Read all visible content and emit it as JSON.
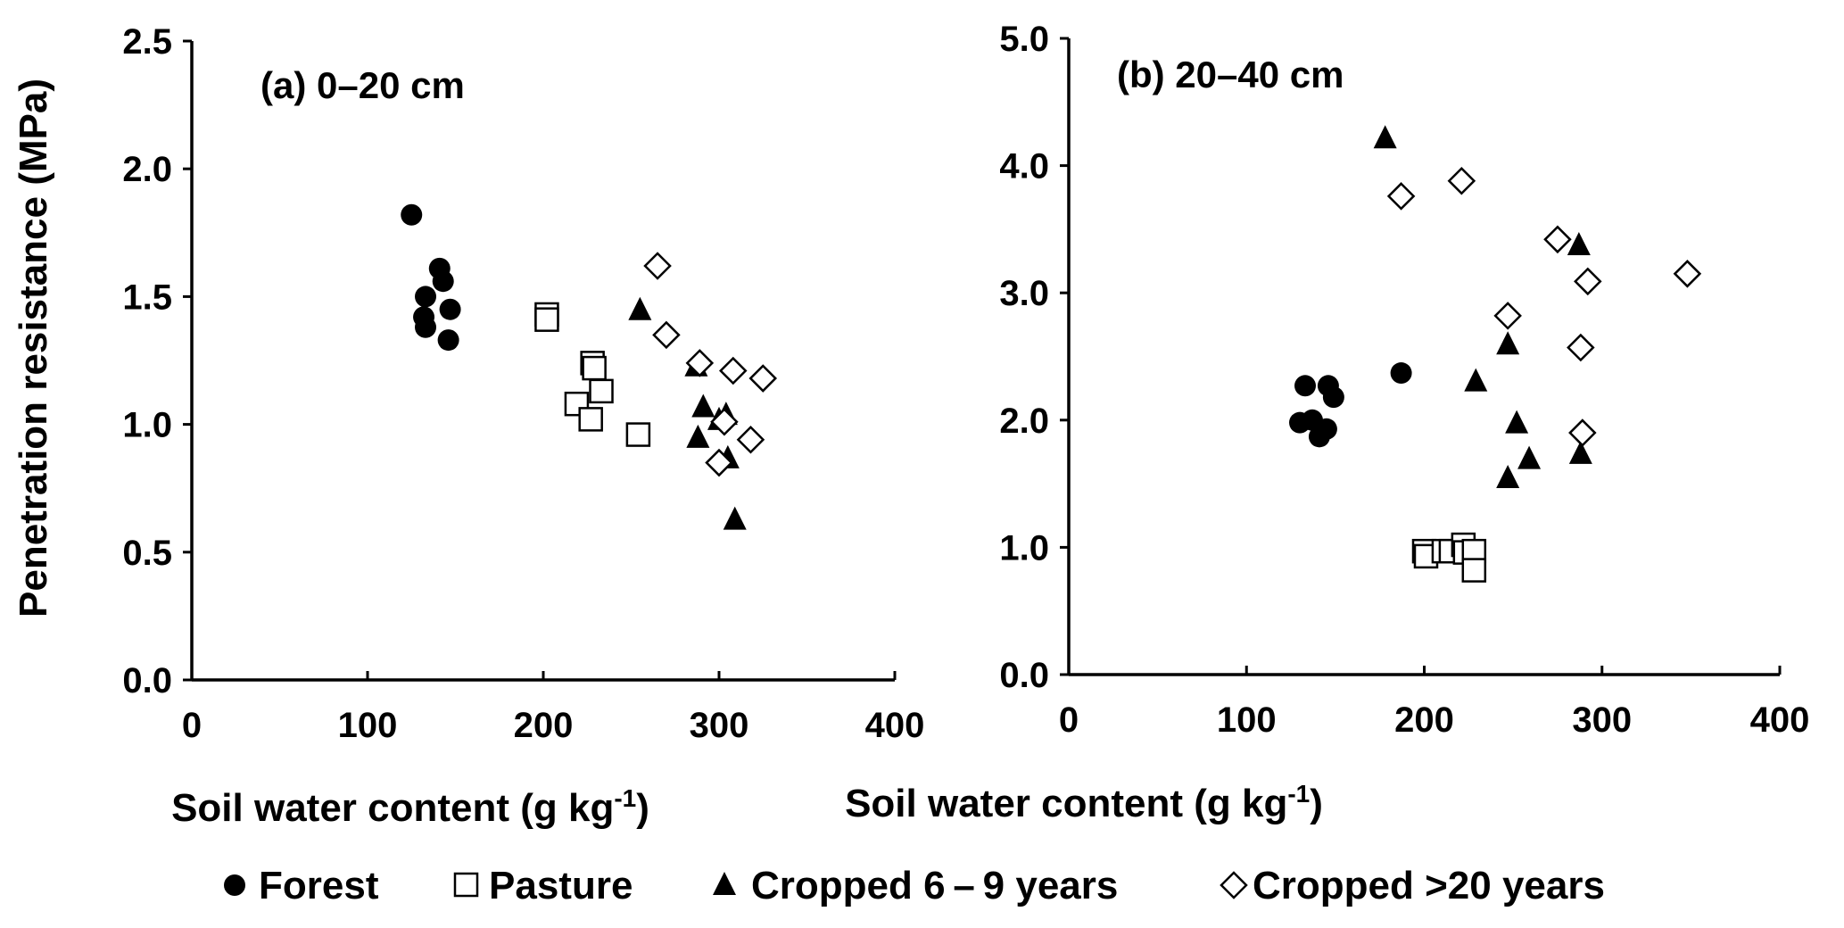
{
  "chart_data": [
    {
      "type": "scatter",
      "title": "(a)  0–20 cm",
      "xlabel": "Soil water content (g kg",
      "xlabel_sup": "-1",
      "xlabel_close": ")",
      "ylabel": "Penetration resistance (MPa)",
      "xlim": [
        0,
        400
      ],
      "ylim": [
        0,
        2.5
      ],
      "xticks": [
        "0",
        "100",
        "200",
        "300",
        "400"
      ],
      "yticks": [
        "0.0",
        "0.5",
        "1.0",
        "1.5",
        "2.0",
        "2.5"
      ],
      "grid": false,
      "series": [
        {
          "name": "Forest",
          "marker": "circle-filled",
          "x": [
            125,
            133,
            132,
            133,
            141,
            143,
            147,
            146
          ],
          "y": [
            1.82,
            1.5,
            1.42,
            1.38,
            1.61,
            1.56,
            1.45,
            1.33
          ]
        },
        {
          "name": "Pasture",
          "marker": "square-open",
          "x": [
            202,
            202,
            228,
            229,
            233,
            219,
            227,
            254
          ],
          "y": [
            1.43,
            1.41,
            1.24,
            1.22,
            1.13,
            1.08,
            1.02,
            0.96
          ]
        },
        {
          "name": "Cropped 6–9 years",
          "marker": "triangle-filled",
          "x": [
            255,
            287,
            291,
            288,
            300,
            304,
            305,
            309
          ],
          "y": [
            1.45,
            1.23,
            1.07,
            0.95,
            1.02,
            1.04,
            0.87,
            0.63
          ]
        },
        {
          "name": "Cropped >20 years",
          "marker": "diamond-open",
          "x": [
            265,
            270,
            289,
            308,
            325,
            303,
            318,
            300
          ],
          "y": [
            1.62,
            1.35,
            1.24,
            1.21,
            1.18,
            1.01,
            0.94,
            0.85
          ]
        }
      ]
    },
    {
      "type": "scatter",
      "title": "(b)  20–40 cm",
      "xlabel": "Soil water content (g kg",
      "xlabel_sup": "-1",
      "xlabel_close": ")",
      "ylabel": "",
      "xlim": [
        0,
        400
      ],
      "ylim": [
        0,
        5.0
      ],
      "xticks": [
        "0",
        "100",
        "200",
        "300",
        "400"
      ],
      "yticks": [
        "0.0",
        "1.0",
        "2.0",
        "3.0",
        "4.0",
        "5.0"
      ],
      "grid": false,
      "series": [
        {
          "name": "Forest",
          "marker": "circle-filled",
          "x": [
            133,
            130,
            137,
            141,
            145,
            146,
            149,
            187
          ],
          "y": [
            2.27,
            1.98,
            2.0,
            1.87,
            1.93,
            2.27,
            2.18,
            2.37
          ]
        },
        {
          "name": "Pasture",
          "marker": "square-open",
          "x": [
            200,
            201,
            211,
            215,
            222,
            223,
            228,
            228
          ],
          "y": [
            0.97,
            0.93,
            0.97,
            0.97,
            1.02,
            0.96,
            0.97,
            0.82
          ]
        },
        {
          "name": "Cropped 6–9 years",
          "marker": "triangle-filled",
          "x": [
            178,
            287,
            247,
            229,
            252,
            259,
            247,
            288
          ],
          "y": [
            4.22,
            3.38,
            2.6,
            2.31,
            1.98,
            1.7,
            1.55,
            1.74
          ]
        },
        {
          "name": "Cropped >20 years",
          "marker": "diamond-open",
          "x": [
            187,
            221,
            275,
            292,
            348,
            247,
            288,
            289
          ],
          "y": [
            3.76,
            3.88,
            3.42,
            3.09,
            3.15,
            2.82,
            2.57,
            1.9
          ]
        }
      ]
    }
  ],
  "legend": {
    "placement": "bottom",
    "items": [
      {
        "label": "Forest",
        "marker": "circle-filled"
      },
      {
        "label": "Pasture",
        "marker": "square-open"
      },
      {
        "label": "Cropped 6 – 9 years",
        "marker": "triangle-filled"
      },
      {
        "label": "Cropped >20 years",
        "marker": "diamond-open"
      }
    ]
  }
}
